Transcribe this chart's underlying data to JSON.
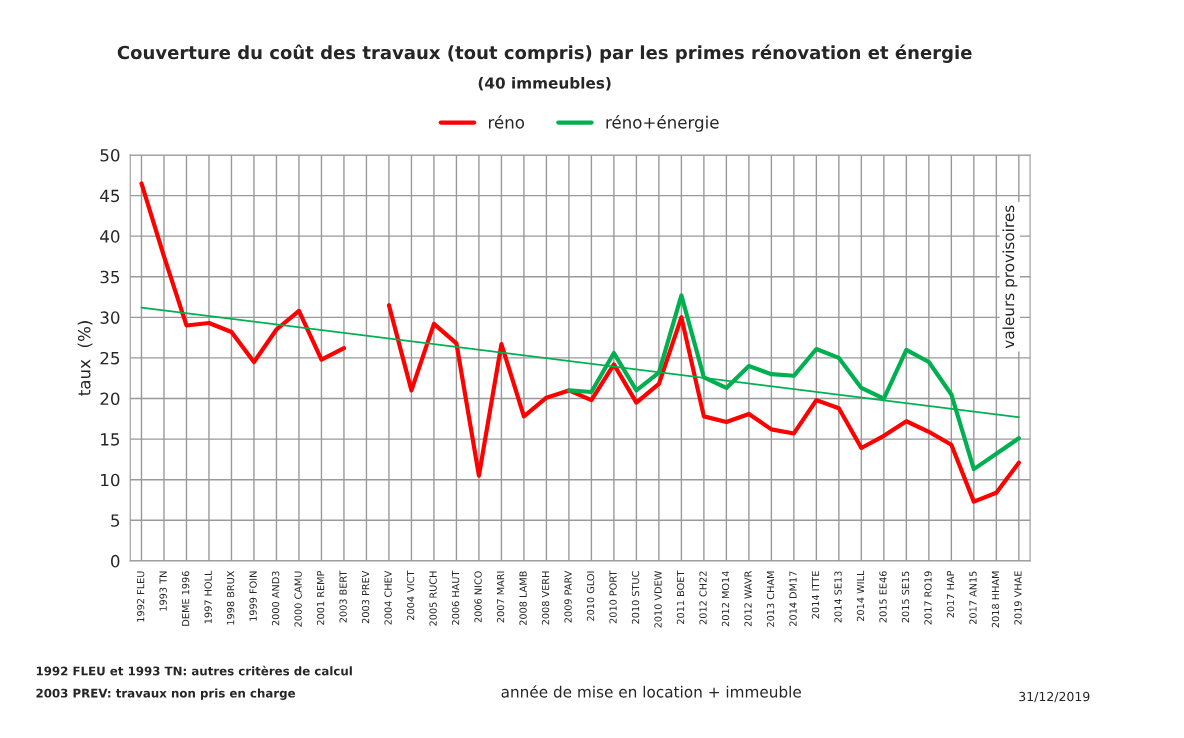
{
  "chart_data": {
    "type": "line",
    "title": "Couverture du coût des travaux (tout compris) par les primes rénovation et énergie",
    "subtitle": "(40 immeubles)",
    "ylabel": "taux  (%)",
    "xlabel": "année de mise en location + immeuble",
    "categories": [
      "1992 FLEU",
      "1993 TN",
      "DEME 1996",
      "1997 HOLL",
      "1998 BRUX",
      "1999 FOIN",
      "2000 AND3",
      "2000 CAMU",
      "2001 REMP",
      "2003 BERT",
      "2003 PREV",
      "2004 CHEV",
      "2004 VICT",
      "2005 RUCH",
      "2006 HAUT",
      "2006 NICO",
      "2007 MARI",
      "2008 LAMB",
      "2008 VERH",
      "2009 PARV",
      "2010 GLOI",
      "2010 PORT",
      "2010 STUC",
      "2010 VDEW",
      "2011 BOET",
      "2012 CH22",
      "2012 MO14",
      "2012 WAVR",
      "2013 CHAM",
      "2014 DM17",
      "2014 ITTE",
      "2014 SE13",
      "2014 WILL",
      "2015 EE46",
      "2015 SE15",
      "2017 RO19",
      "2017 HAP",
      "2017 AN15",
      "2018 HHAM",
      "2019 VHAE"
    ],
    "series": [
      {
        "name": "réno",
        "color": "#ff0000",
        "values": [
          46.5,
          37.5,
          29.0,
          29.3,
          28.2,
          24.5,
          28.5,
          30.8,
          24.8,
          26.2,
          null,
          31.5,
          21.0,
          29.2,
          26.8,
          10.5,
          26.7,
          17.8,
          20.1,
          21.0,
          19.8,
          24.2,
          19.5,
          21.8,
          30.0,
          17.8,
          17.1,
          18.1,
          16.2,
          15.7,
          19.8,
          18.8,
          13.9,
          15.4,
          17.2,
          15.9,
          14.3,
          7.3,
          8.4,
          12.1
        ]
      },
      {
        "name": "réno+énergie",
        "color": "#00b050",
        "values": [
          null,
          null,
          null,
          null,
          null,
          null,
          null,
          null,
          null,
          null,
          null,
          null,
          null,
          null,
          null,
          null,
          null,
          null,
          null,
          21.0,
          20.8,
          25.6,
          21.0,
          23.2,
          32.7,
          22.6,
          21.3,
          24.0,
          23.0,
          22.8,
          26.1,
          25.0,
          21.3,
          20.0,
          26.0,
          24.5,
          20.5,
          11.3,
          13.2,
          15.1
        ]
      },
      {
        "type": "line",
        "color": "#00b050",
        "values": [
          31.2,
          null,
          null,
          null,
          null,
          null,
          null,
          null,
          null,
          null,
          null,
          null,
          null,
          null,
          null,
          null,
          null,
          null,
          null,
          null,
          null,
          null,
          null,
          null,
          null,
          null,
          null,
          null,
          null,
          null,
          null,
          null,
          null,
          null,
          null,
          null,
          null,
          null,
          null,
          17.7
        ]
      }
    ],
    "ylim": [
      0,
      50
    ],
    "yticks": [
      0,
      5,
      10,
      15,
      20,
      25,
      30,
      35,
      40,
      45,
      50
    ],
    "grid": true,
    "legend": "top",
    "annotations": [
      "valeurs provisoires",
      "1992 FLEU et 1993 TN: autres critères de calcul",
      "2003 PREV: travaux non pris en charge",
      "31/12/2019"
    ]
  }
}
